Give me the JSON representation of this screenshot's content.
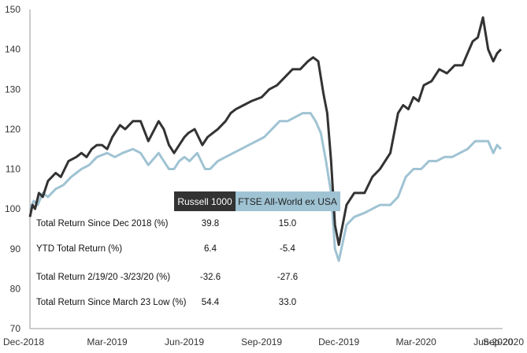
{
  "chart_data": {
    "type": "line",
    "title": "",
    "xlabel": "",
    "ylabel": "",
    "ylim": [
      70,
      150
    ],
    "y_ticks": [
      "70",
      "80",
      "90",
      "100",
      "110",
      "120",
      "130",
      "140",
      "150"
    ],
    "x_ticks": [
      "Dec-2018",
      "Mar-2019",
      "Jun-2019",
      "Sep-2019",
      "Dec-2019",
      "Mar-2020",
      "Jun-2020",
      "Sep-2020"
    ],
    "grid": false,
    "colors": {
      "russell": "#333333",
      "ftse": "#9fc3d3"
    },
    "series": [
      {
        "name": "Russell 1000",
        "x": [
          0,
          0.1,
          0.2,
          0.35,
          0.5,
          0.7,
          1.0,
          1.2,
          1.5,
          1.8,
          2.0,
          2.2,
          2.4,
          2.6,
          2.8,
          3.0,
          3.2,
          3.5,
          3.7,
          4.0,
          4.3,
          4.6,
          5.0,
          5.2,
          5.4,
          5.6,
          5.8,
          6.0,
          6.15,
          6.4,
          6.7,
          6.9,
          7.1,
          7.3,
          7.6,
          7.8,
          8.0,
          8.3,
          8.6,
          9.0,
          9.3,
          9.6,
          9.9,
          10.2,
          10.5,
          10.8,
          11.0,
          11.2,
          11.4,
          11.55,
          11.7,
          11.85,
          12.0,
          12.3,
          12.6,
          13.0,
          13.3,
          13.6,
          14.0,
          14.3,
          14.5,
          14.7,
          14.9,
          15.1,
          15.3,
          15.6,
          15.9,
          16.2,
          16.5,
          16.8,
          17.0,
          17.2,
          17.4,
          17.6,
          17.8,
          18.0,
          18.15,
          18.3
        ],
        "values": [
          98,
          101,
          100,
          104,
          103,
          107,
          109,
          108,
          112,
          113,
          114,
          113,
          115,
          116,
          116,
          115,
          118,
          121,
          120,
          122,
          122,
          117,
          122,
          120,
          116,
          114,
          116,
          118,
          119,
          120,
          116,
          118,
          119,
          120,
          122,
          124,
          125,
          126,
          127,
          128,
          130,
          131,
          133,
          135,
          135,
          137,
          138,
          137,
          129,
          124,
          112,
          96,
          91,
          101,
          104,
          104,
          108,
          110,
          114,
          124,
          126,
          125,
          128,
          127,
          131,
          132,
          135,
          134,
          136,
          136,
          139,
          142,
          143,
          148,
          140,
          137,
          139,
          140
        ]
      },
      {
        "name": "FTSE All-World ex USA",
        "x": [
          0,
          0.15,
          0.3,
          0.5,
          0.7,
          1.0,
          1.3,
          1.6,
          2.0,
          2.3,
          2.6,
          3.0,
          3.3,
          3.6,
          4.0,
          4.3,
          4.6,
          5.0,
          5.2,
          5.4,
          5.6,
          5.8,
          6.0,
          6.2,
          6.5,
          6.8,
          7.0,
          7.3,
          7.6,
          7.9,
          8.2,
          8.5,
          8.8,
          9.1,
          9.4,
          9.7,
          10.0,
          10.3,
          10.6,
          10.9,
          11.1,
          11.3,
          11.5,
          11.7,
          11.85,
          12.0,
          12.3,
          12.6,
          13.0,
          13.3,
          13.6,
          14.0,
          14.3,
          14.6,
          14.9,
          15.2,
          15.5,
          15.8,
          16.1,
          16.4,
          16.7,
          17.0,
          17.3,
          17.6,
          17.8,
          18.0,
          18.15,
          18.3
        ],
        "values": [
          100,
          102,
          101,
          104,
          103,
          105,
          106,
          108,
          110,
          111,
          113,
          114,
          113,
          114,
          115,
          114,
          111,
          114,
          112,
          110,
          110,
          112,
          113,
          112,
          114,
          110,
          110,
          112,
          113,
          114,
          115,
          116,
          117,
          118,
          120,
          122,
          122,
          123,
          124,
          124,
          122,
          119,
          112,
          104,
          90,
          87,
          96,
          98,
          99,
          100,
          101,
          101,
          103,
          108,
          110,
          110,
          112,
          112,
          113,
          113,
          114,
          115,
          117,
          117,
          117,
          114,
          116,
          115
        ]
      }
    ]
  },
  "table": {
    "headers": [
      "Russell 1000",
      "FTSE All-World ex USA"
    ],
    "rows": [
      {
        "label": "Total Return Since Dec 2018 (%)",
        "r1000": "39.8",
        "ftse": "15.0"
      },
      {
        "label": "YTD Total Return (%)",
        "r1000": "6.4",
        "ftse": "-5.4"
      },
      {
        "label": "Total Return 2/19/20 -3/23/20 (%)",
        "r1000": "-32.6",
        "ftse": "-27.6"
      },
      {
        "label": "Total Return Since March 23 Low (%)",
        "r1000": "54.4",
        "ftse": "33.0"
      }
    ]
  }
}
